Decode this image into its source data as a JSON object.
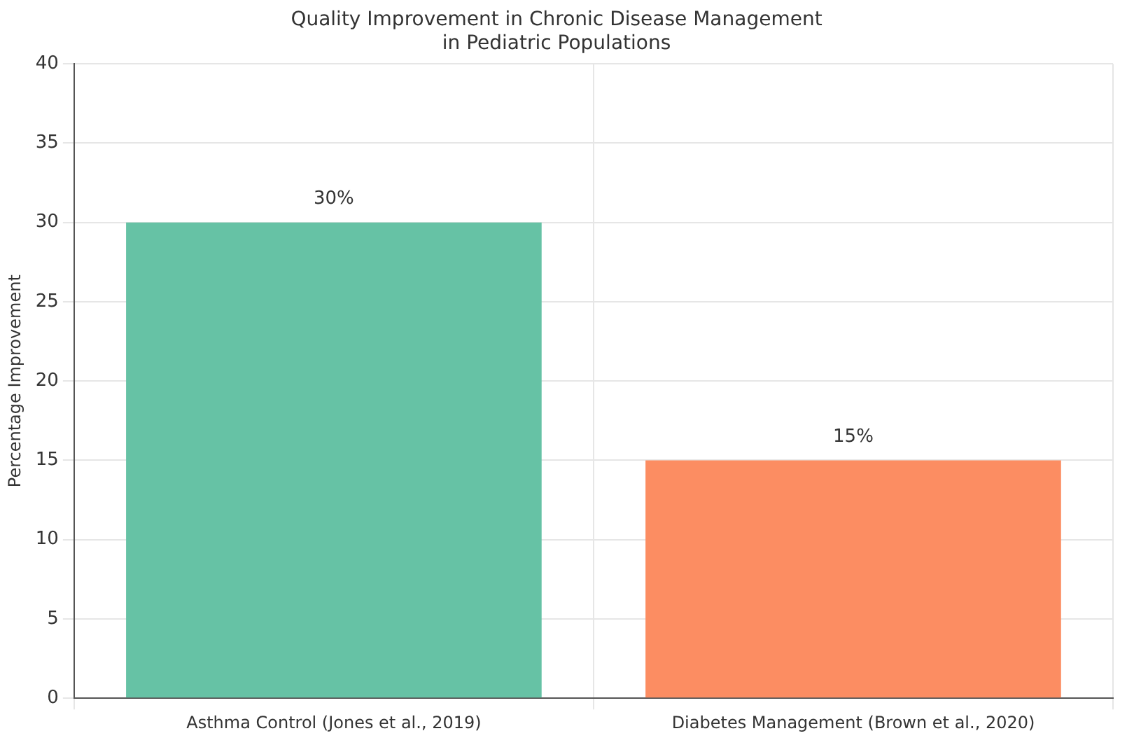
{
  "chart_data": {
    "type": "bar",
    "title": "Quality Improvement in Chronic Disease Management\nin Pediatric Populations",
    "ylabel": "Percentage Improvement",
    "categories": [
      "Asthma Control (Jones et al., 2019)",
      "Diabetes Management (Brown et al., 2020)"
    ],
    "values": [
      30,
      15
    ],
    "colors": [
      "#66c2a5",
      "#fc8d62"
    ],
    "value_labels": [
      "30%",
      "15%"
    ],
    "ylim": [
      0,
      40
    ],
    "yticks": [
      0,
      5,
      10,
      15,
      20,
      25,
      30,
      35,
      40
    ],
    "grid": true
  }
}
